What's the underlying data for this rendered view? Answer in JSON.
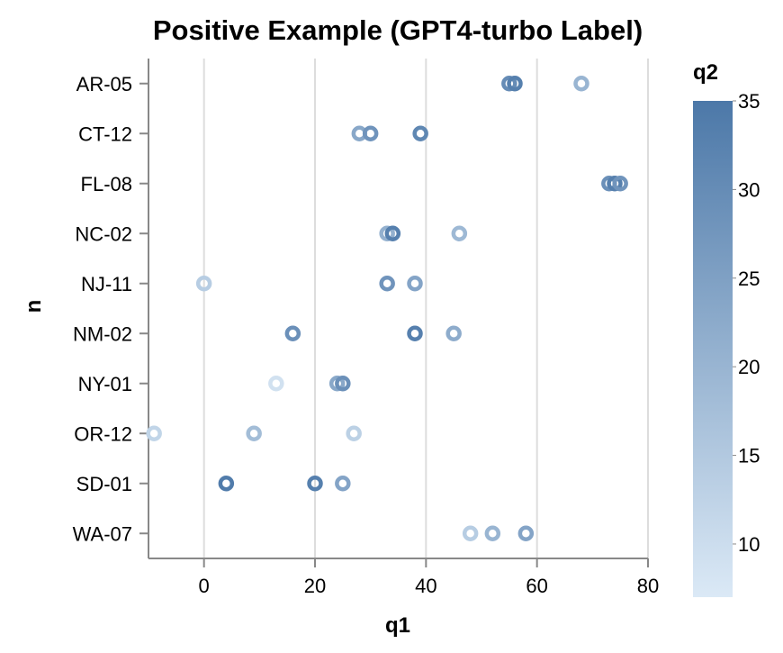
{
  "chart_data": {
    "type": "scatter",
    "title": "Positive Example (GPT4-turbo Label)",
    "xlabel": "q1",
    "ylabel": "n",
    "xlim": [
      -10,
      80
    ],
    "x_ticks": [
      0,
      20,
      40,
      60,
      80
    ],
    "grid": "vertical",
    "categories": [
      "AR-05",
      "CT-12",
      "FL-08",
      "NC-02",
      "NJ-11",
      "NM-02",
      "NY-01",
      "OR-12",
      "SD-01",
      "WA-07"
    ],
    "color_legend": {
      "title": "q2",
      "range": [
        7,
        35
      ],
      "ticks": [
        10,
        15,
        20,
        25,
        30,
        35
      ],
      "color_low": "#dbe9f6",
      "color_high": "#4c78a8"
    },
    "points": [
      {
        "category": "AR-05",
        "q1": 55,
        "q2": 30
      },
      {
        "category": "AR-05",
        "q1": 56,
        "q2": 33
      },
      {
        "category": "AR-05",
        "q1": 68,
        "q2": 20
      },
      {
        "category": "CT-12",
        "q1": 28,
        "q2": 23
      },
      {
        "category": "CT-12",
        "q1": 30,
        "q2": 28
      },
      {
        "category": "CT-12",
        "q1": 39,
        "q2": 31
      },
      {
        "category": "FL-08",
        "q1": 73,
        "q2": 29
      },
      {
        "category": "FL-08",
        "q1": 74,
        "q2": 33
      },
      {
        "category": "FL-08",
        "q1": 75,
        "q2": 28
      },
      {
        "category": "NC-02",
        "q1": 33,
        "q2": 21
      },
      {
        "category": "NC-02",
        "q1": 34,
        "q2": 33
      },
      {
        "category": "NC-02",
        "q1": 46,
        "q2": 19
      },
      {
        "category": "NJ-11",
        "q1": 0,
        "q2": 14
      },
      {
        "category": "NJ-11",
        "q1": 33,
        "q2": 28
      },
      {
        "category": "NJ-11",
        "q1": 38,
        "q2": 24
      },
      {
        "category": "NM-02",
        "q1": 16,
        "q2": 29
      },
      {
        "category": "NM-02",
        "q1": 38,
        "q2": 33
      },
      {
        "category": "NM-02",
        "q1": 45,
        "q2": 22
      },
      {
        "category": "NY-01",
        "q1": 13,
        "q2": 9
      },
      {
        "category": "NY-01",
        "q1": 24,
        "q2": 23
      },
      {
        "category": "NY-01",
        "q1": 25,
        "q2": 29
      },
      {
        "category": "OR-12",
        "q1": -9,
        "q2": 12
      },
      {
        "category": "OR-12",
        "q1": 9,
        "q2": 18
      },
      {
        "category": "OR-12",
        "q1": 27,
        "q2": 13
      },
      {
        "category": "SD-01",
        "q1": 4,
        "q2": 34
      },
      {
        "category": "SD-01",
        "q1": 20,
        "q2": 33
      },
      {
        "category": "SD-01",
        "q1": 25,
        "q2": 24
      },
      {
        "category": "WA-07",
        "q1": 48,
        "q2": 14
      },
      {
        "category": "WA-07",
        "q1": 52,
        "q2": 20
      },
      {
        "category": "WA-07",
        "q1": 58,
        "q2": 24
      }
    ]
  }
}
